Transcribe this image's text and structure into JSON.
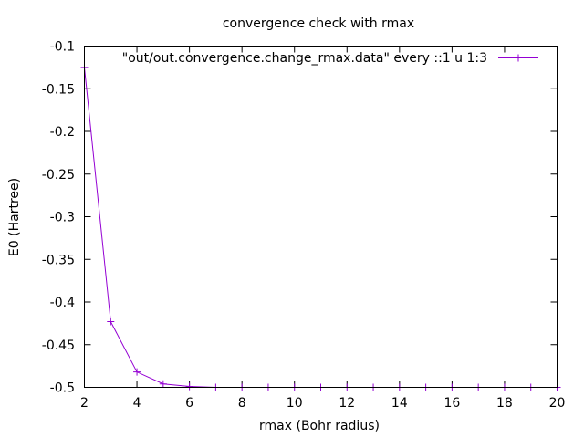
{
  "chart_data": {
    "type": "line",
    "title": "convergence check with rmax",
    "xlabel": "rmax (Bohr radius)",
    "ylabel": "E0 (Hartree)",
    "xlim": [
      2,
      20
    ],
    "ylim": [
      -0.5,
      -0.1
    ],
    "xticks": [
      "2",
      "4",
      "6",
      "8",
      "10",
      "12",
      "14",
      "16",
      "18",
      "20"
    ],
    "yticks": [
      "-0.1",
      "-0.15",
      "-0.2",
      "-0.25",
      "-0.3",
      "-0.35",
      "-0.4",
      "-0.45",
      "-0.5"
    ],
    "grid": false,
    "legend_position": "top-right",
    "series": [
      {
        "name": "\"out/out.convergence.change_rmax.data\" every ::1 u 1:3",
        "color": "#9400d3",
        "marker": "plus",
        "x": [
          2,
          3,
          4,
          5,
          6,
          7,
          8,
          9,
          10,
          11,
          12,
          13,
          14,
          15,
          16,
          17,
          18,
          19,
          20
        ],
        "y": [
          -0.125,
          -0.423,
          -0.482,
          -0.496,
          -0.499,
          -0.5,
          -0.5,
          -0.5,
          -0.5,
          -0.5,
          -0.5,
          -0.5,
          -0.5,
          -0.5,
          -0.5,
          -0.5,
          -0.5,
          -0.5,
          -0.5
        ]
      }
    ]
  }
}
